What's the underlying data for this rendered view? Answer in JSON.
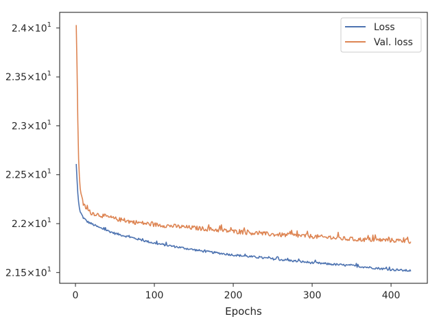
{
  "chart_data": {
    "type": "line",
    "xlabel": "Epochs",
    "ylabel": "",
    "title": "",
    "xlim": [
      -20,
      446
    ],
    "ylim": [
      21.39,
      24.16
    ],
    "x_ticks": [
      0,
      100,
      200,
      300,
      400
    ],
    "y_ticks": [
      {
        "value": 21.5,
        "mantissa": "2.15",
        "exp": "1"
      },
      {
        "value": 22.0,
        "mantissa": "2.2",
        "exp": "1"
      },
      {
        "value": 22.5,
        "mantissa": "2.25",
        "exp": "1"
      },
      {
        "value": 23.0,
        "mantissa": "2.3",
        "exp": "1"
      },
      {
        "value": 23.5,
        "mantissa": "2.35",
        "exp": "1"
      },
      {
        "value": 24.0,
        "mantissa": "2.4",
        "exp": "1"
      }
    ],
    "y_tick_base": "10",
    "legend_position": "top-right",
    "series": [
      {
        "name": "Loss",
        "color": "#4c72b0",
        "points": [
          [
            1,
            22.61
          ],
          [
            2,
            22.45
          ],
          [
            3,
            22.31
          ],
          [
            4,
            22.22
          ],
          [
            5,
            22.16
          ],
          [
            6,
            22.12
          ],
          [
            8,
            22.09
          ],
          [
            10,
            22.06
          ],
          [
            15,
            22.02
          ],
          [
            20,
            22.0
          ],
          [
            30,
            21.96
          ],
          [
            40,
            21.93
          ],
          [
            50,
            21.9
          ],
          [
            70,
            21.86
          ],
          [
            100,
            21.8
          ],
          [
            130,
            21.76
          ],
          [
            160,
            21.72
          ],
          [
            200,
            21.68
          ],
          [
            250,
            21.64
          ],
          [
            300,
            21.6
          ],
          [
            350,
            21.57
          ],
          [
            400,
            21.53
          ],
          [
            420,
            21.52
          ],
          [
            425,
            21.52
          ]
        ],
        "noise": 0.011
      },
      {
        "name": "Val. loss",
        "color": "#dd8452",
        "points": [
          [
            1,
            24.03
          ],
          [
            2,
            23.6
          ],
          [
            3,
            23.05
          ],
          [
            4,
            22.66
          ],
          [
            5,
            22.48
          ],
          [
            6,
            22.36
          ],
          [
            8,
            22.26
          ],
          [
            10,
            22.2
          ],
          [
            15,
            22.14
          ],
          [
            20,
            22.11
          ],
          [
            30,
            22.09
          ],
          [
            50,
            22.05
          ],
          [
            70,
            22.02
          ],
          [
            100,
            21.99
          ],
          [
            130,
            21.97
          ],
          [
            160,
            21.95
          ],
          [
            200,
            21.92
          ],
          [
            250,
            21.89
          ],
          [
            300,
            21.87
          ],
          [
            350,
            21.84
          ],
          [
            400,
            21.83
          ],
          [
            425,
            21.82
          ]
        ],
        "noise": 0.022
      }
    ]
  }
}
